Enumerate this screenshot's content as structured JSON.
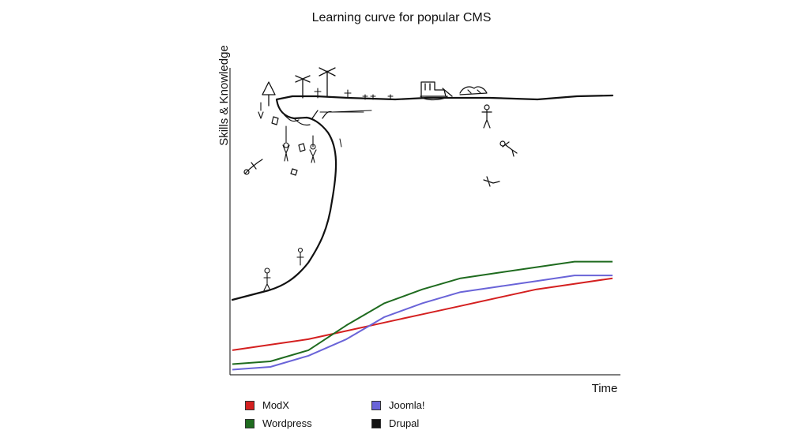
{
  "chart_data": {
    "type": "line",
    "title": "Learning curve for popular CMS",
    "xlabel": "Time",
    "ylabel": "Skills & Knowledge",
    "x": [
      0,
      10,
      20,
      30,
      40,
      50,
      60,
      70,
      80,
      90,
      100
    ],
    "xlim": [
      0,
      100
    ],
    "ylim": [
      0,
      100
    ],
    "grid": false,
    "legend_placement": "bottom-left",
    "series": [
      {
        "name": "ModX",
        "color": "#d42020",
        "values": [
          8,
          10,
          12,
          15,
          18,
          21,
          24,
          27,
          30,
          32,
          34
        ]
      },
      {
        "name": "Wordpress",
        "color": "#1f6b1f",
        "values": [
          3,
          4,
          8,
          17,
          25,
          30,
          34,
          36,
          38,
          40,
          40
        ]
      },
      {
        "name": "Joomla!",
        "color": "#6a64d8",
        "values": [
          1,
          2,
          6,
          12,
          20,
          25,
          29,
          31,
          33,
          35,
          35
        ]
      },
      {
        "name": "Drupal",
        "color": "#111111",
        "values": [
          25,
          30,
          38,
          100,
          99,
          99,
          99,
          99,
          99,
          99,
          100
        ]
      }
    ]
  }
}
